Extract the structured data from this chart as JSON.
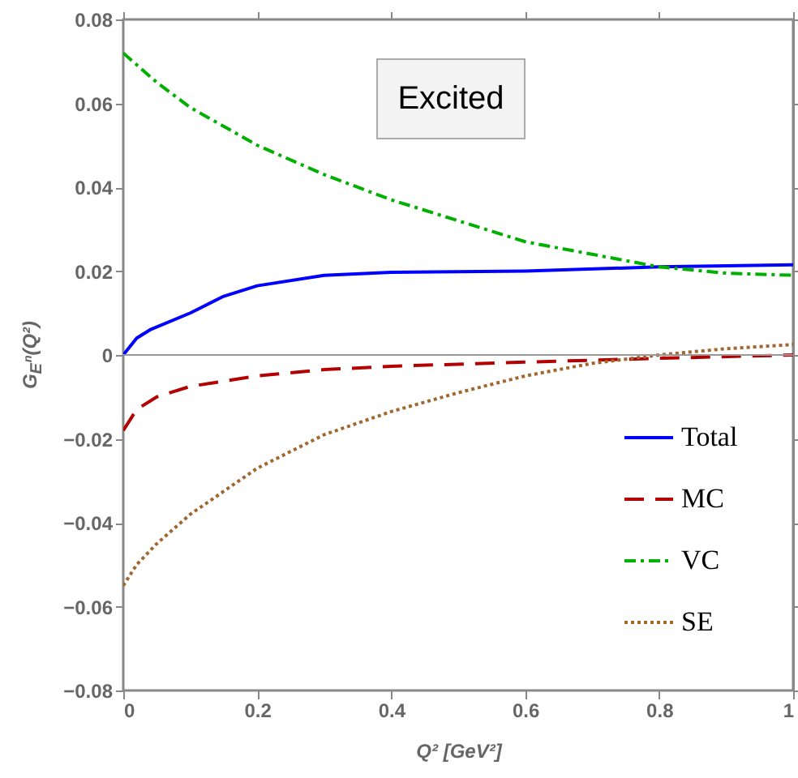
{
  "chart_data": {
    "type": "line",
    "xlabel": "Q² [GeV²]",
    "ylabel": "G$_{E}$ⁿ(Q²)",
    "annotations": [
      "Excited"
    ],
    "xlim": [
      0,
      1
    ],
    "xticks": [
      0,
      0.2,
      0.4,
      0.6,
      0.8,
      1
    ],
    "ylim": [
      -0.08,
      0.08
    ],
    "yticks": [
      -0.08,
      -0.06,
      -0.04,
      -0.02,
      0,
      0.02,
      0.04,
      0.06,
      0.08
    ],
    "grid": false,
    "legend": "bottom right",
    "ref_lines": [
      {
        "axis": "y",
        "value": 0,
        "color": "#999999"
      }
    ],
    "series": [
      {
        "name": "Total",
        "color": "#0000ff",
        "line_style": "solid",
        "x": [
          0,
          0.02,
          0.04,
          0.1,
          0.15,
          0.2,
          0.3,
          0.4,
          0.6,
          0.8,
          1
        ],
        "values": [
          0,
          0.004,
          0.006,
          0.01,
          0.014,
          0.0165,
          0.019,
          0.0197,
          0.02,
          0.021,
          0.0215
        ]
      },
      {
        "name": "MC",
        "color": "#b30000",
        "line_style": "dashed",
        "x": [
          0,
          0.02,
          0.05,
          0.1,
          0.2,
          0.3,
          0.4,
          0.6,
          0.8,
          1
        ],
        "values": [
          -0.018,
          -0.013,
          -0.01,
          -0.0075,
          -0.005,
          -0.0035,
          -0.0027,
          -0.0017,
          -0.0008,
          0
        ]
      },
      {
        "name": "VC",
        "color": "#00b000",
        "line_style": "dashdot",
        "x": [
          0,
          0.05,
          0.1,
          0.2,
          0.3,
          0.4,
          0.5,
          0.6,
          0.7,
          0.8,
          0.9,
          1
        ],
        "values": [
          0.072,
          0.065,
          0.059,
          0.05,
          0.043,
          0.037,
          0.032,
          0.027,
          0.024,
          0.021,
          0.0195,
          0.019
        ]
      },
      {
        "name": "SE",
        "color": "#a0672e",
        "line_style": "dotted",
        "x": [
          0,
          0.02,
          0.05,
          0.1,
          0.2,
          0.3,
          0.4,
          0.5,
          0.6,
          0.7,
          0.8,
          0.9,
          1
        ],
        "values": [
          -0.055,
          -0.05,
          -0.045,
          -0.038,
          -0.027,
          -0.019,
          -0.0135,
          -0.009,
          -0.005,
          -0.002,
          0,
          0.0015,
          0.0025
        ]
      }
    ]
  }
}
